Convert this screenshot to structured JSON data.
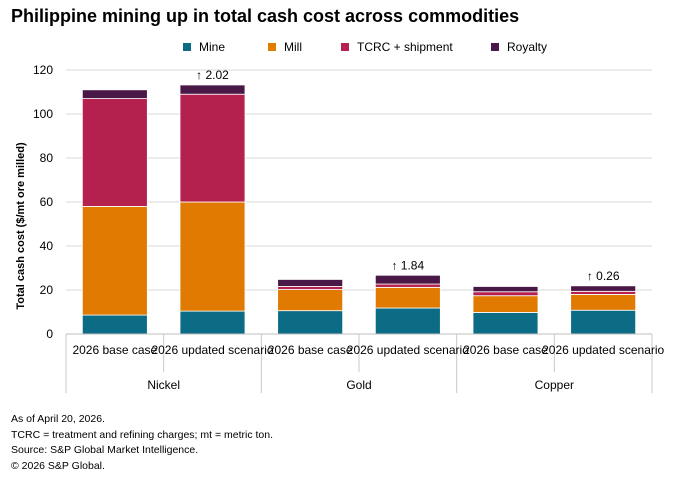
{
  "title": "Philippine mining up in total cash cost across commodities",
  "legend": [
    {
      "name": "Mine",
      "color": "#0d6c85"
    },
    {
      "name": "Mill",
      "color": "#e07a00"
    },
    {
      "name": "TCRC + shipment",
      "color": "#b5214e"
    },
    {
      "name": "Royalty",
      "color": "#4a1846"
    }
  ],
  "chart_data": {
    "type": "bar",
    "stacked": true,
    "ylabel": "Total cash cost ($/mt ore milled)",
    "ylim": [
      0,
      120
    ],
    "yticks": [
      0,
      20,
      40,
      60,
      80,
      100,
      120
    ],
    "grid": true,
    "legend_position": "top",
    "groups": [
      "Nickel",
      "Gold",
      "Copper"
    ],
    "categories": [
      "2026 base case",
      "2026 updated scenario",
      "2026 base case",
      "2026 updated scenario",
      "2026 base case",
      "2026 updated scenario"
    ],
    "category_groups": [
      0,
      0,
      1,
      1,
      2,
      2
    ],
    "series": [
      {
        "name": "Mine",
        "values": [
          8.6,
          10.4,
          10.6,
          11.8,
          9.8,
          10.8
        ]
      },
      {
        "name": "Mill",
        "values": [
          49.4,
          49.6,
          9.6,
          9.4,
          7.6,
          7.2
        ]
      },
      {
        "name": "TCRC + shipment",
        "values": [
          49,
          49,
          1.4,
          1.5,
          1.8,
          1.4
        ]
      },
      {
        "name": "Royalty",
        "values": [
          4,
          4.2,
          3.2,
          4.0,
          2.4,
          2.5
        ]
      }
    ],
    "annotations": [
      {
        "category_index": 1,
        "text": "↑ 2.02"
      },
      {
        "category_index": 3,
        "text": "↑ 1.84"
      },
      {
        "category_index": 5,
        "text": "↑ 0.26"
      }
    ]
  },
  "footnotes": [
    "As of April 20, 2026.",
    "TCRC = treatment and refining charges; mt = metric ton.",
    "Source: S&P Global Market Intelligence.",
    "© 2026 S&P Global."
  ]
}
